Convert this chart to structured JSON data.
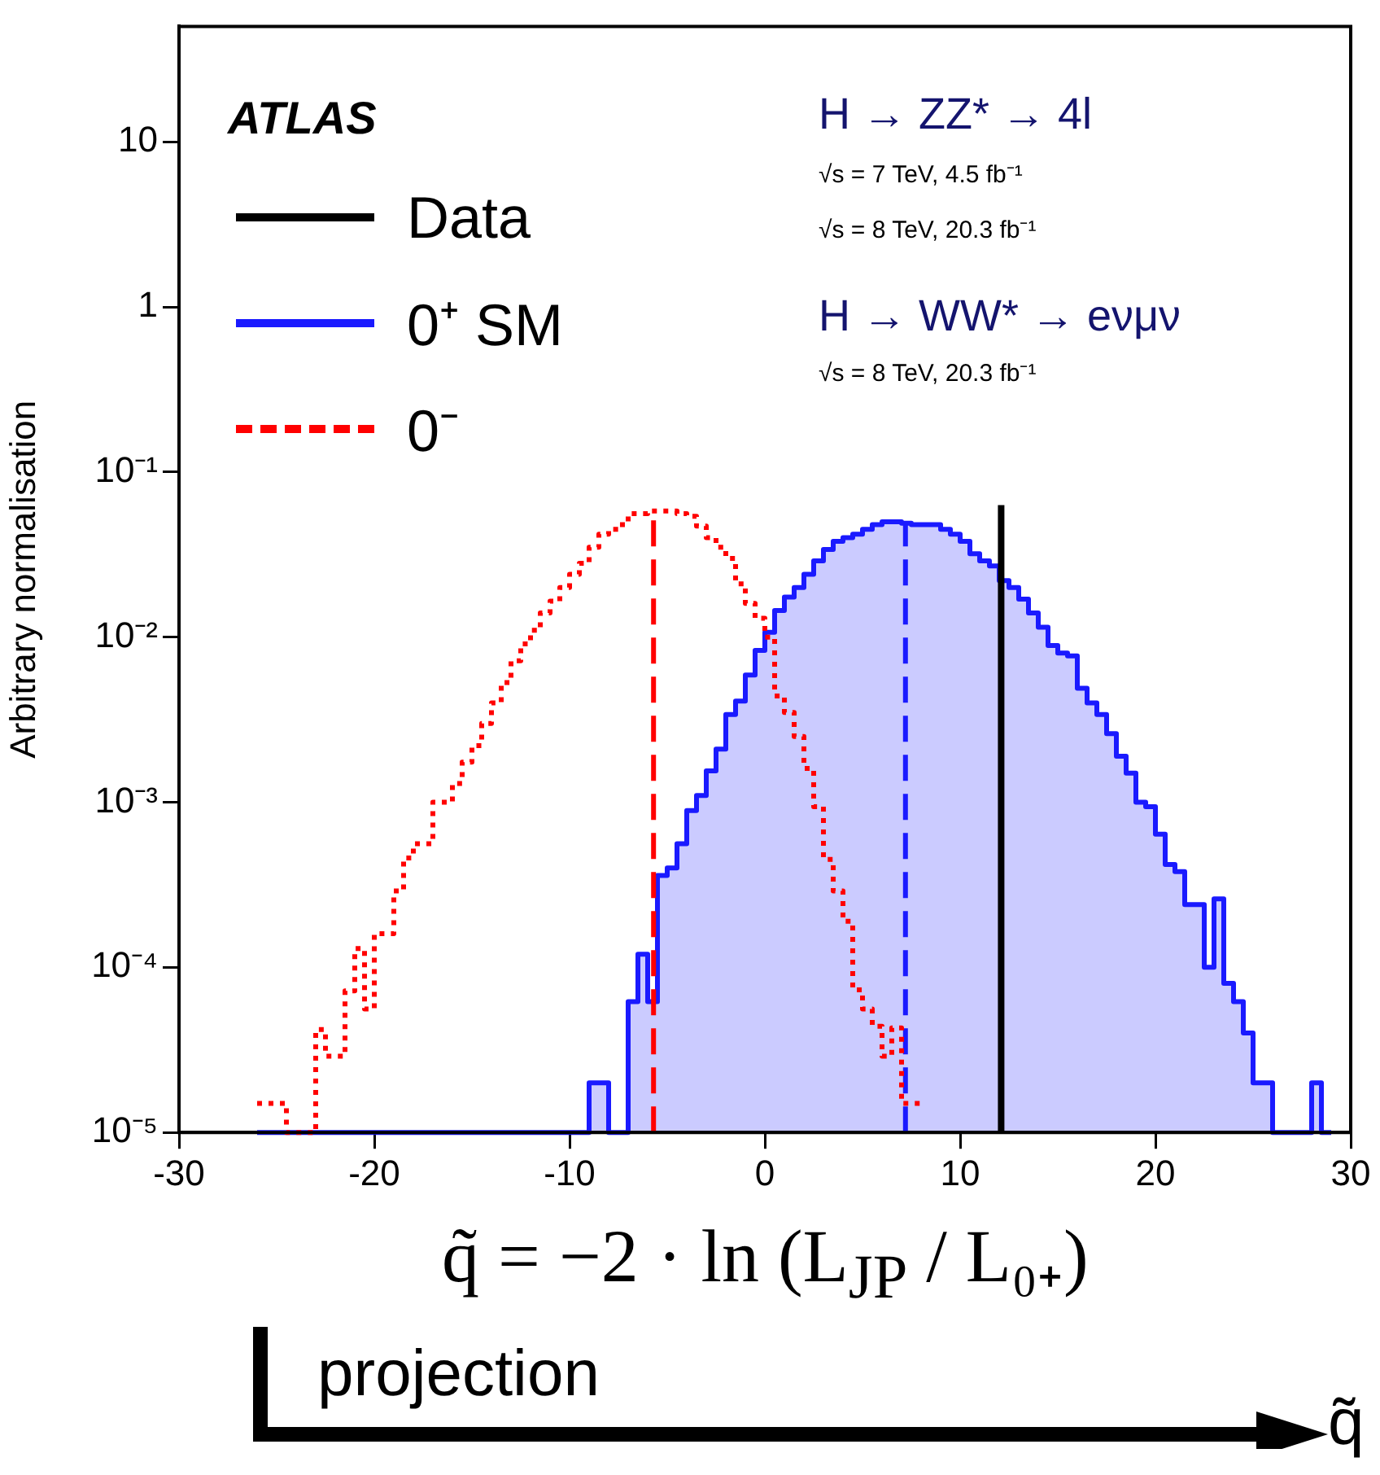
{
  "chart_data": {
    "type": "histogram",
    "xlabel": "q̃ = −2 · ln (L$_{JP}$ / L₀₊)",
    "ylabel": "Arbitrary normalisation",
    "annotations": [
      "ATLAS",
      "H → ZZ* → 4l",
      "√s = 7 TeV, 4.5 fb⁻¹",
      "√s = 8 TeV, 20.3 fb⁻¹",
      "H → WW* → eνμν",
      "√s = 8 TeV, 20.3 fb⁻¹",
      "projection",
      "q̃"
    ],
    "bins": [
      -26,
      -25.5,
      -25,
      -24.5,
      -24,
      -23.5,
      -23,
      -22.5,
      -22,
      -21.5,
      -21,
      -20.5,
      -20,
      -19.5,
      -19,
      -18.5,
      -18,
      -17.5,
      -17,
      -16.5,
      -16,
      -15.5,
      -15,
      -14.5,
      -14,
      -13.5,
      -13,
      -12.5,
      -12,
      -11.5,
      -11,
      -10.5,
      -10,
      -9.5,
      -9,
      -8.5,
      -8,
      -7.5,
      -7,
      -6.5,
      -6,
      -5.5,
      -5,
      -4.5,
      -4,
      -3.5,
      -3,
      -2.5,
      -2,
      -1.5,
      -1,
      -0.5,
      0,
      0.5,
      1,
      1.5,
      2,
      2.5,
      3,
      3.5,
      4,
      4.5,
      5,
      5.5,
      6,
      6.5,
      7,
      7.5,
      8,
      8.5,
      9,
      9.5,
      10,
      10.5,
      11,
      11.5,
      12,
      12.5,
      13,
      13.5,
      14,
      14.5,
      15,
      15.5,
      16,
      16.5,
      17,
      17.5,
      18,
      18.5,
      19,
      19.5,
      20,
      20.5,
      21,
      21.5,
      22,
      22.5,
      23,
      23.5,
      24,
      24.5,
      25,
      25.5,
      26,
      26.5,
      27,
      27.5,
      28,
      28.5,
      29
    ],
    "series": [
      {
        "name": "Data",
        "type": "line",
        "color": "#000000",
        "x": [
          12.1,
          12.1
        ],
        "values": [
          1e-05,
          0.063
        ]
      },
      {
        "name": "0⁺ SM",
        "color": "#1a1aff",
        "values": [
          null,
          null,
          null,
          null,
          null,
          null,
          null,
          null,
          null,
          null,
          null,
          null,
          null,
          null,
          null,
          null,
          null,
          null,
          null,
          null,
          null,
          null,
          null,
          null,
          null,
          null,
          null,
          null,
          null,
          null,
          null,
          null,
          null,
          null,
          2e-05,
          2e-05,
          null,
          null,
          6.2e-05,
          0.00012,
          6.2e-05,
          0.00036,
          0.0004,
          0.00056,
          0.00089,
          0.0011,
          0.00155,
          0.0021,
          0.0034,
          0.0041,
          0.0059,
          0.0083,
          0.0107,
          0.0145,
          0.0175,
          0.02,
          0.024,
          0.029,
          0.034,
          0.038,
          0.04,
          0.042,
          0.045,
          0.048,
          0.05,
          0.05,
          0.049,
          0.048,
          0.048,
          0.048,
          0.045,
          0.042,
          0.038,
          0.032,
          0.029,
          0.027,
          0.022,
          0.02,
          0.017,
          0.014,
          0.0115,
          0.0089,
          0.008,
          0.0077,
          0.0049,
          0.004,
          0.0034,
          0.0026,
          0.0019,
          0.0015,
          0.001,
          0.00094,
          0.00064,
          0.00042,
          0.00038,
          0.00024,
          0.00024,
          0.0001,
          0.00026,
          8e-05,
          6.2e-05,
          4e-05,
          2e-05,
          2e-05,
          null,
          null,
          null,
          null,
          2e-05,
          null
        ]
      },
      {
        "name": "0⁻",
        "type": "step",
        "color": "#ff0000",
        "line_style": "dotted",
        "x": [
          -26,
          -25.5,
          -25,
          -24.5,
          -24,
          -23.5,
          -23,
          -22.5,
          -22,
          -21.5,
          -21,
          -20.5,
          -20,
          -19.5,
          -19,
          -18.5,
          -18,
          -17.5,
          -17,
          -16.5,
          -16,
          -15.5,
          -15,
          -14.5,
          -14,
          -13.5,
          -13,
          -12.5,
          -12,
          -11.5,
          -11,
          -10.5,
          -10,
          -9.5,
          -9,
          -8.5,
          -8,
          -7.5,
          -7,
          -6.5,
          -6,
          -5.5,
          -5,
          -4.5,
          -4,
          -3.5,
          -3,
          -2.5,
          -2,
          -1.5,
          -1,
          -0.5,
          0,
          0.5,
          1,
          1.5,
          2,
          2.5,
          3,
          3.5,
          4,
          4.5,
          5,
          5.5,
          6,
          6.5,
          7,
          7.5,
          8
        ],
        "values": [
          1.5e-05,
          1.5e-05,
          1.5e-05,
          1e-05,
          1e-05,
          1e-05,
          4.2e-05,
          2.9e-05,
          2.9e-05,
          7.2e-05,
          0.00013,
          5.6e-05,
          0.00016,
          0.00016,
          0.00029,
          0.00046,
          0.00056,
          0.00056,
          0.001,
          0.001,
          0.0013,
          0.00175,
          0.0022,
          0.003,
          0.004,
          0.0053,
          0.0072,
          0.0091,
          0.011,
          0.014,
          0.0165,
          0.02,
          0.024,
          0.028,
          0.035,
          0.042,
          0.045,
          0.048,
          0.056,
          0.056,
          0.058,
          0.058,
          0.058,
          0.056,
          0.054,
          0.047,
          0.04,
          0.035,
          0.03,
          0.021,
          0.016,
          0.013,
          0.01,
          0.0044,
          0.0035,
          0.0025,
          0.0016,
          0.00094,
          0.00045,
          0.00029,
          0.00019,
          7.3e-05,
          5.6e-05,
          4.4e-05,
          2.9e-05,
          4.3e-05,
          1.5e-05,
          1.5e-05,
          1.5e-05
        ]
      },
      {
        "type": "line",
        "color": "#ff0000",
        "line_style": "dashed",
        "x": [
          -5.7,
          -5.7
        ],
        "values": [
          1e-05,
          0.058
        ]
      },
      {
        "type": "line",
        "color": "#1a1aff",
        "line_style": "dashed",
        "x": [
          7.2,
          7.2
        ],
        "values": [
          1e-05,
          0.048
        ]
      }
    ],
    "xlim": [
      -30,
      30
    ],
    "xticks": [
      -30,
      -20,
      -10,
      0,
      10,
      20,
      30
    ],
    "ylim": [
      1e-05,
      50
    ],
    "yticks": [
      {
        "value": 1e-05,
        "label": "10⁻⁵"
      },
      {
        "value": 0.0001,
        "label": "10⁻⁴"
      },
      {
        "value": 0.001,
        "label": "10⁻³"
      },
      {
        "value": 0.01,
        "label": "10⁻²"
      },
      {
        "value": 0.1,
        "label": "10⁻¹"
      },
      1,
      10
    ],
    "log": "y",
    "legend": "top left",
    "marker": "none",
    "line_style": "solid"
  }
}
